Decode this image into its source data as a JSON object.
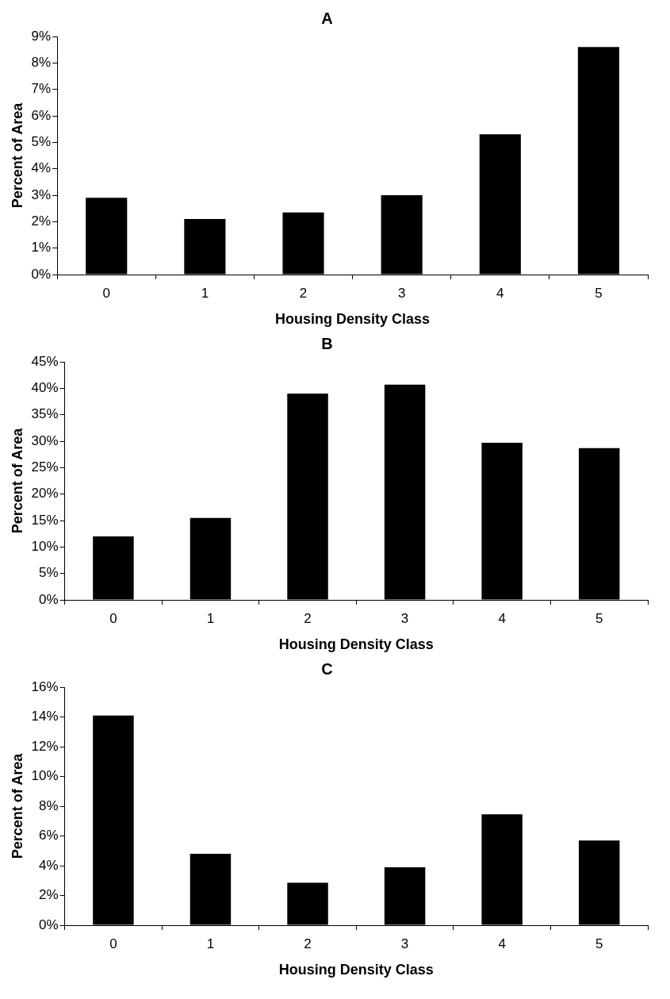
{
  "chart_data": [
    {
      "type": "bar",
      "title": "A",
      "xlabel": "Housing Density Class",
      "ylabel": "Percent of Area",
      "categories": [
        "0",
        "1",
        "2",
        "3",
        "4",
        "5"
      ],
      "values": [
        2.9,
        2.1,
        2.35,
        3.0,
        5.3,
        8.6
      ],
      "color": "#000000",
      "ylim": [
        0,
        9
      ],
      "yticks": [
        {
          "value": 0,
          "label": "0%"
        },
        {
          "value": 1,
          "label": "1%"
        },
        {
          "value": 2,
          "label": "2%"
        },
        {
          "value": 3,
          "label": "3%"
        },
        {
          "value": 4,
          "label": "4%"
        },
        {
          "value": 5,
          "label": "5%"
        },
        {
          "value": 6,
          "label": "6%"
        },
        {
          "value": 7,
          "label": "7%"
        },
        {
          "value": 8,
          "label": "8%"
        },
        {
          "value": 9,
          "label": "9%"
        }
      ],
      "grid": false,
      "legend": false
    },
    {
      "type": "bar",
      "title": "B",
      "xlabel": "Housing Density Class",
      "ylabel": "Percent of Area",
      "categories": [
        "0",
        "1",
        "2",
        "3",
        "4",
        "5"
      ],
      "values": [
        12,
        15.5,
        39,
        40.7,
        29.7,
        28.7
      ],
      "color": "#000000",
      "ylim": [
        0,
        45
      ],
      "yticks": [
        {
          "value": 0,
          "label": "0%"
        },
        {
          "value": 5,
          "label": "5%"
        },
        {
          "value": 10,
          "label": "10%"
        },
        {
          "value": 15,
          "label": "15%"
        },
        {
          "value": 20,
          "label": "20%"
        },
        {
          "value": 25,
          "label": "25%"
        },
        {
          "value": 30,
          "label": "30%"
        },
        {
          "value": 35,
          "label": "35%"
        },
        {
          "value": 40,
          "label": "40%"
        },
        {
          "value": 45,
          "label": "45%"
        }
      ],
      "grid": false,
      "legend": false
    },
    {
      "type": "bar",
      "title": "C",
      "xlabel": "Housing Density Class",
      "ylabel": "Percent of Area",
      "categories": [
        "0",
        "1",
        "2",
        "3",
        "4",
        "5"
      ],
      "values": [
        14.1,
        4.8,
        2.85,
        3.9,
        7.45,
        5.7
      ],
      "color": "#000000",
      "ylim": [
        0,
        16
      ],
      "yticks": [
        {
          "value": 0,
          "label": "0%"
        },
        {
          "value": 2,
          "label": "2%"
        },
        {
          "value": 4,
          "label": "4%"
        },
        {
          "value": 6,
          "label": "6%"
        },
        {
          "value": 8,
          "label": "8%"
        },
        {
          "value": 10,
          "label": "10%"
        },
        {
          "value": 12,
          "label": "12%"
        },
        {
          "value": 14,
          "label": "14%"
        },
        {
          "value": 16,
          "label": "16%"
        }
      ],
      "grid": false,
      "legend": false
    }
  ]
}
